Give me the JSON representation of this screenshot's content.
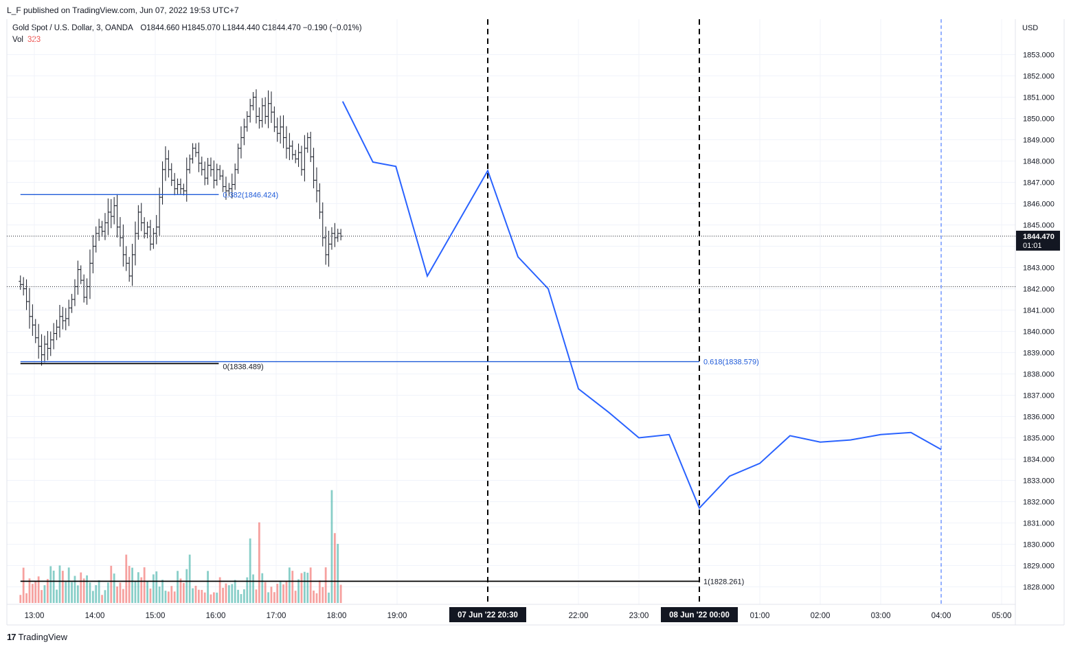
{
  "header": {
    "published": "L_F published on TradingView.com, Jun 07, 2022 19:53 UTC+7",
    "symbol": "Gold Spot / U.S. Dollar, 3, OANDA",
    "ohlc": "O1844.660  H1845.070  L1844.440  C1844.470  −0.190 (−0.01%)",
    "vol_label": "Vol",
    "vol_value": "323"
  },
  "footer": {
    "brand": "TradingView",
    "logo": "17"
  },
  "axis": {
    "currency": "USD"
  },
  "price_marker": {
    "price": "1844.470",
    "countdown": "01:01"
  },
  "crosshair_labels": [
    "07 Jun '22   20:30",
    "08 Jun '22   00:00"
  ],
  "fib_labels": {
    "f382": "0.382(1846.424)",
    "f0": "0(1838.489)",
    "f618": "0.618(1838.579)",
    "f1": "1(1828.261)"
  },
  "colors": {
    "up": "#26a69a",
    "down": "#ef5350",
    "accent": "#2962ff",
    "fib": "#1e5ad8",
    "text": "#131722"
  },
  "chart_data": {
    "type": "line",
    "title": "Gold Spot / U.S. Dollar, 3, OANDA",
    "y_range": [
      1827.5,
      1853.8
    ],
    "y_ticks": [
      1828,
      1829,
      1830,
      1831,
      1832,
      1833,
      1834,
      1835,
      1836,
      1837,
      1838,
      1839,
      1840,
      1841,
      1842,
      1843,
      1844,
      1845,
      1846,
      1847,
      1848,
      1849,
      1850,
      1851,
      1852,
      1853
    ],
    "x_range": [
      12.77,
      29.33
    ],
    "x_ticks": [
      {
        "t": 13,
        "label": "13:00"
      },
      {
        "t": 14,
        "label": "14:00"
      },
      {
        "t": 15,
        "label": "15:00"
      },
      {
        "t": 16,
        "label": "16:00"
      },
      {
        "t": 17,
        "label": "17:00"
      },
      {
        "t": 18,
        "label": "18:00"
      },
      {
        "t": 19,
        "label": "19:00"
      },
      {
        "t": 22,
        "label": "22:00"
      },
      {
        "t": 23,
        "label": "23:00"
      },
      {
        "t": 25,
        "label": "01:00"
      },
      {
        "t": 26,
        "label": "02:00"
      },
      {
        "t": 27,
        "label": "03:00"
      },
      {
        "t": 28,
        "label": "04:00"
      },
      {
        "t": 29,
        "label": "05:00"
      }
    ],
    "close_price": 1844.47,
    "dotted_level": 1842.1,
    "vlines_dashed": [
      20.5,
      24.0
    ],
    "vline_blue": 28.0,
    "fib_levels": [
      {
        "name": "0.382",
        "price": 1846.424,
        "t0": 12.77,
        "t1": 16.05
      },
      {
        "name": "0",
        "price": 1838.489,
        "t0": 12.77,
        "t1": 16.05
      },
      {
        "name": "0.618",
        "price": 1838.579,
        "t0": 12.77,
        "t1": 24.0
      },
      {
        "name": "1",
        "price": 1828.261,
        "t0": 12.77,
        "t1": 24.0
      }
    ],
    "projection": [
      {
        "t": 18.1,
        "p": 1850.8
      },
      {
        "t": 18.6,
        "p": 1847.95
      },
      {
        "t": 18.98,
        "p": 1847.75
      },
      {
        "t": 19.5,
        "p": 1842.6
      },
      {
        "t": 20.5,
        "p": 1847.55
      },
      {
        "t": 21.0,
        "p": 1843.5
      },
      {
        "t": 21.5,
        "p": 1842.0
      },
      {
        "t": 22.0,
        "p": 1837.3
      },
      {
        "t": 22.5,
        "p": 1836.2
      },
      {
        "t": 23.0,
        "p": 1835.0
      },
      {
        "t": 23.5,
        "p": 1835.15
      },
      {
        "t": 24.0,
        "p": 1831.7
      },
      {
        "t": 24.5,
        "p": 1833.2
      },
      {
        "t": 25.0,
        "p": 1833.8
      },
      {
        "t": 25.5,
        "p": 1835.1
      },
      {
        "t": 26.0,
        "p": 1834.8
      },
      {
        "t": 26.5,
        "p": 1834.9
      },
      {
        "t": 27.0,
        "p": 1835.15
      },
      {
        "t": 27.5,
        "p": 1835.25
      },
      {
        "t": 28.0,
        "p": 1834.45
      }
    ],
    "candles_3min_closes": [
      1842.2,
      1842.0,
      1841.4,
      1840.7,
      1840.3,
      1839.7,
      1839.3,
      1838.9,
      1839.4,
      1839.2,
      1839.6,
      1839.9,
      1840.2,
      1840.7,
      1840.5,
      1840.6,
      1841.1,
      1841.5,
      1842.1,
      1842.9,
      1842.4,
      1841.6,
      1842.1,
      1843.2,
      1844.0,
      1844.6,
      1844.9,
      1844.7,
      1845.1,
      1845.6,
      1845.4,
      1845.9,
      1844.9,
      1844.4,
      1843.6,
      1843.2,
      1842.6,
      1843.6,
      1844.6,
      1845.6,
      1845.1,
      1844.6,
      1844.9,
      1844.1,
      1844.6,
      1844.9,
      1846.3,
      1847.6,
      1848.1,
      1847.6,
      1847.1,
      1846.7,
      1846.9,
      1846.7,
      1846.6,
      1847.6,
      1848.1,
      1848.6,
      1848.4,
      1847.9,
      1847.6,
      1847.2,
      1847.8,
      1847.6,
      1847.1,
      1847.6,
      1847.3,
      1846.8,
      1846.6,
      1846.7,
      1846.9,
      1847.6,
      1848.6,
      1849.1,
      1849.6,
      1850.1,
      1850.6,
      1851.0,
      1850.1,
      1849.9,
      1850.6,
      1850.1,
      1850.7,
      1850.3,
      1849.6,
      1849.3,
      1849.6,
      1849.1,
      1848.6,
      1848.7,
      1848.3,
      1848.1,
      1848.4,
      1847.6,
      1848.6,
      1849.1,
      1848.2,
      1847.1,
      1846.6,
      1845.6,
      1844.4,
      1843.6,
      1844.1,
      1844.6,
      1844.4,
      1844.6,
      1844.47
    ],
    "volume_max": 230
  }
}
